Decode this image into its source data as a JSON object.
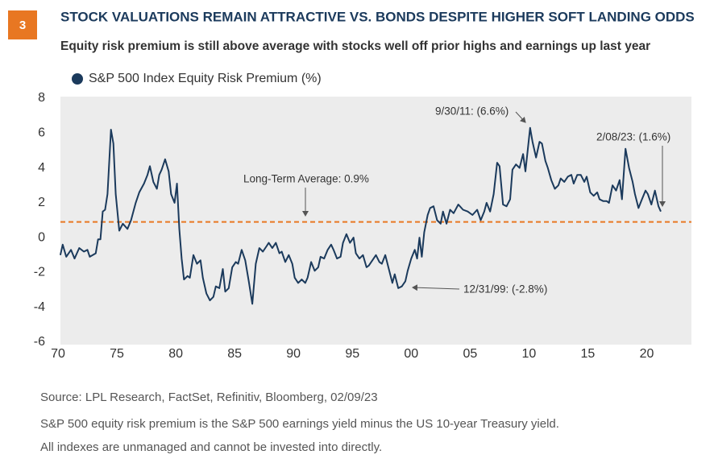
{
  "chart_data": {
    "type": "line",
    "figure_number": "3",
    "title": "STOCK VALUATIONS REMAIN ATTRACTIVE VS. BONDS DESPITE HIGHER SOFT LANDING ODDS",
    "subtitle": "Equity risk premium is still above average with stocks well off prior highs and earnings up last year",
    "source": "Source: LPL Research, FactSet, Refinitiv, Bloomberg,  02/09/23",
    "notes": [
      "S&P 500 equity risk premium is the S&P 500 earnings yield minus the US 10-year Treasury yield.",
      "All indexes are unmanaged and cannot be invested into directly."
    ],
    "x": [
      1970.2,
      1970.4,
      1970.7,
      1971.1,
      1971.4,
      1971.8,
      1972.2,
      1972.5,
      1972.7,
      1973.2,
      1973.4,
      1973.6,
      1973.8,
      1974.0,
      1974.2,
      1974.5,
      1974.7,
      1974.9,
      1975.2,
      1975.5,
      1975.9,
      1976.2,
      1976.6,
      1976.9,
      1977.3,
      1977.6,
      1977.8,
      1978.1,
      1978.4,
      1978.6,
      1978.8,
      1979.1,
      1979.4,
      1979.6,
      1979.9,
      1980.1,
      1980.3,
      1980.5,
      1980.7,
      1981.0,
      1981.2,
      1981.5,
      1981.8,
      1982.1,
      1982.3,
      1982.6,
      1982.9,
      1983.2,
      1983.4,
      1983.7,
      1984.0,
      1984.2,
      1984.5,
      1984.8,
      1985.1,
      1985.3,
      1985.6,
      1985.9,
      1986.2,
      1986.5,
      1986.8,
      1987.1,
      1987.4,
      1987.7,
      1987.9,
      1988.2,
      1988.5,
      1988.8,
      1989.0,
      1989.3,
      1989.6,
      1989.9,
      1990.1,
      1990.4,
      1990.7,
      1991.0,
      1991.2,
      1991.5,
      1991.8,
      1992.1,
      1992.3,
      1992.6,
      1992.9,
      1993.2,
      1993.4,
      1993.7,
      1994.0,
      1994.2,
      1994.5,
      1994.8,
      1995.1,
      1995.3,
      1995.6,
      1995.9,
      1996.2,
      1996.4,
      1996.7,
      1997.0,
      1997.3,
      1997.5,
      1997.8,
      1998.1,
      1998.4,
      1998.6,
      1998.9,
      1999.2,
      1999.5,
      1999.7,
      2000.0,
      2000.3,
      2000.5,
      2000.7,
      2000.9,
      2001.1,
      2001.4,
      2001.6,
      2001.9,
      2002.2,
      2002.5,
      2002.7,
      2003.0,
      2003.3,
      2003.6,
      2004.0,
      2004.4,
      2004.8,
      2005.2,
      2005.6,
      2005.9,
      2006.2,
      2006.4,
      2006.7,
      2007.0,
      2007.3,
      2007.5,
      2007.8,
      2008.1,
      2008.4,
      2008.6,
      2008.9,
      2009.2,
      2009.5,
      2009.7,
      2010.1,
      2010.3,
      2010.6,
      2010.9,
      2011.1,
      2011.4,
      2011.6,
      2011.9,
      2012.2,
      2012.5,
      2012.7,
      2013.0,
      2013.3,
      2013.6,
      2013.8,
      2014.1,
      2014.4,
      2014.7,
      2014.9,
      2015.2,
      2015.5,
      2015.8,
      2016.0,
      2016.3,
      2016.6,
      2016.8,
      2017.1,
      2017.4,
      2017.7,
      2017.9,
      2018.2,
      2018.5,
      2018.8,
      2019.0,
      2019.3,
      2019.6,
      2019.9,
      2020.1,
      2020.4,
      2020.7,
      2021.0,
      2021.2
    ],
    "series": [
      {
        "name": "S&P 500 Index Equity Risk Premium (%)",
        "color": "#1b3a5c",
        "values": [
          -1.0,
          -0.4,
          -1.1,
          -0.7,
          -1.2,
          -0.6,
          -0.8,
          -0.7,
          -1.1,
          -0.9,
          -0.1,
          -0.1,
          1.5,
          1.6,
          2.5,
          6.2,
          5.4,
          2.5,
          0.4,
          0.8,
          0.5,
          1.0,
          2.0,
          2.6,
          3.1,
          3.6,
          4.1,
          3.2,
          2.8,
          3.6,
          3.9,
          4.5,
          3.8,
          2.5,
          2.0,
          3.1,
          0.5,
          -1.2,
          -2.4,
          -2.2,
          -2.3,
          -1.0,
          -1.5,
          -1.3,
          -2.3,
          -3.2,
          -3.6,
          -3.4,
          -2.8,
          -2.9,
          -1.8,
          -3.1,
          -2.9,
          -1.7,
          -1.4,
          -1.5,
          -0.7,
          -1.3,
          -2.5,
          -3.8,
          -1.5,
          -0.6,
          -0.8,
          -0.5,
          -0.3,
          -0.6,
          -0.3,
          -0.9,
          -0.8,
          -1.4,
          -1.0,
          -1.5,
          -2.3,
          -2.6,
          -2.4,
          -2.6,
          -2.3,
          -1.4,
          -1.9,
          -1.7,
          -1.1,
          -1.2,
          -0.7,
          -0.4,
          -0.7,
          -1.2,
          -1.1,
          -0.3,
          0.2,
          -0.3,
          0.0,
          -0.9,
          -1.2,
          -1.0,
          -1.7,
          -1.6,
          -1.3,
          -1.0,
          -1.4,
          -1.5,
          -1.0,
          -1.8,
          -2.6,
          -2.1,
          -2.9,
          -2.8,
          -2.5,
          -1.9,
          -1.2,
          -0.7,
          -1.2,
          0.0,
          -1.1,
          0.3,
          1.3,
          1.7,
          1.8,
          1.0,
          0.8,
          1.5,
          0.8,
          1.6,
          1.4,
          1.9,
          1.6,
          1.5,
          1.3,
          1.6,
          1.0,
          1.5,
          2.0,
          1.5,
          2.5,
          4.3,
          4.1,
          1.9,
          1.8,
          2.2,
          3.9,
          4.2,
          4.0,
          4.8,
          3.8,
          6.3,
          5.5,
          4.6,
          5.5,
          5.4,
          4.4,
          4.0,
          3.3,
          2.8,
          3.0,
          3.4,
          3.2,
          3.5,
          3.6,
          3.1,
          3.6,
          3.6,
          3.2,
          3.5,
          2.6,
          2.4,
          2.6,
          2.2,
          2.1,
          2.1,
          2.0,
          3.0,
          2.7,
          3.3,
          2.2,
          5.1,
          4.0,
          3.2,
          2.5,
          1.7,
          2.2,
          2.7,
          2.5,
          1.9,
          2.7,
          1.8,
          1.5
        ]
      }
    ],
    "reference_line": {
      "value": 0.9,
      "label": "Long-Term Average: 0.9%",
      "color": "#e87722"
    },
    "annotations": [
      "9/30/11: (6.6%)",
      "2/08/23: (1.6%)",
      "12/31/99: (-2.8%)"
    ],
    "xlim": [
      1970,
      2023.8
    ],
    "ylim": [
      -6,
      8
    ],
    "xticks": [
      {
        "value": 1970,
        "label": "70"
      },
      {
        "value": 1975,
        "label": "75"
      },
      {
        "value": 1980,
        "label": "80"
      },
      {
        "value": 1985,
        "label": "85"
      },
      {
        "value": 1990,
        "label": "90"
      },
      {
        "value": 1995,
        "label": "95"
      },
      {
        "value": 2000,
        "label": "00"
      },
      {
        "value": 2005,
        "label": "05"
      },
      {
        "value": 2010,
        "label": "10"
      },
      {
        "value": 2015,
        "label": "15"
      },
      {
        "value": 2020,
        "label": "20"
      }
    ],
    "yticks": [
      -6,
      -4,
      -2,
      0,
      2,
      4,
      6,
      8
    ],
    "background": "#ececec",
    "accent": "#e87722"
  }
}
